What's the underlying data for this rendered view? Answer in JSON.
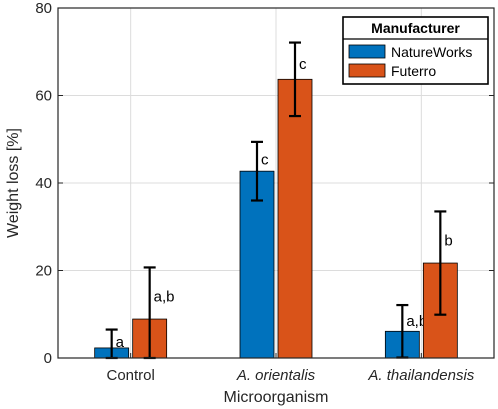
{
  "chart_data": {
    "type": "bar",
    "categories": [
      "Control",
      "A. orientalis",
      "A. thailandensis"
    ],
    "category_italic": [
      false,
      true,
      true
    ],
    "series": [
      {
        "name": "NatureWorks",
        "color": "#0072BD",
        "values": [
          2.3,
          42.7,
          6.1
        ],
        "error": [
          4.2,
          6.7,
          6.0
        ],
        "labels": [
          "a",
          "c",
          "a,b"
        ]
      },
      {
        "name": "Futerro",
        "color": "#D95319",
        "values": [
          8.9,
          63.7,
          21.7
        ],
        "error": [
          11.8,
          8.4,
          11.8
        ],
        "labels": [
          "a,b",
          "c",
          "b"
        ]
      }
    ],
    "xlabel": "Microorganism",
    "ylabel": "Weight loss [%]",
    "ylim": [
      0,
      80
    ],
    "yticks": [
      0,
      20,
      40,
      60,
      80
    ],
    "grid": true,
    "legend": {
      "title": "Manufacturer",
      "placement": "top-right"
    }
  }
}
